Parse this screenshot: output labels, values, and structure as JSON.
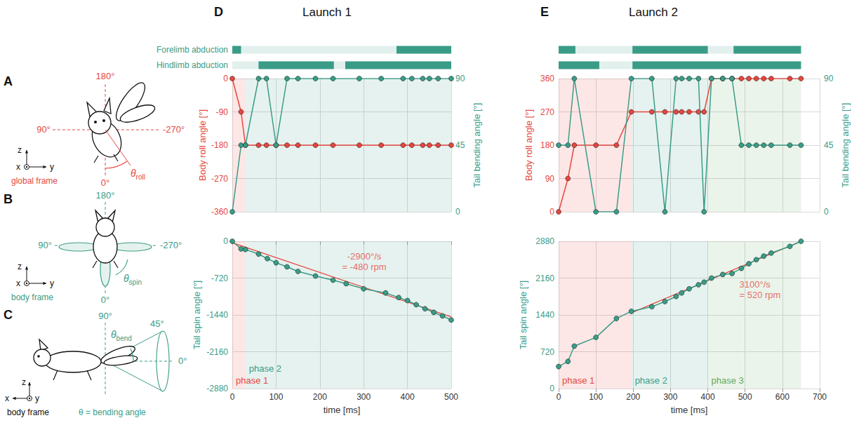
{
  "headers": [
    {
      "letter": "D",
      "title": "Launch 1"
    },
    {
      "letter": "E",
      "title": "Launch 2"
    }
  ],
  "diagrams": [
    {
      "letter": "A",
      "color": "#e4473f",
      "angles": [
        "180°",
        "90°",
        "-270°",
        "0°"
      ],
      "symbol": "θ",
      "subscript": "roll",
      "axes": [
        "x",
        "y",
        "z"
      ],
      "frame": "global frame"
    },
    {
      "letter": "B",
      "color": "#3a9c87",
      "angles": [
        "180°",
        "90°",
        "-270°",
        "0°"
      ],
      "symbol": "θ",
      "subscript": "spin",
      "axes": [
        "x",
        "y",
        "z"
      ],
      "frame": "body frame"
    },
    {
      "letter": "C",
      "color": "#3a9c87",
      "angles": [
        "90°",
        "45°",
        "0°"
      ],
      "symbol": "θ",
      "subscript": "bend",
      "axes": [
        "x",
        "y",
        "z"
      ],
      "frame": "body frame",
      "caption": "θ = bending angle"
    }
  ],
  "chart_data": [
    {
      "type": "timeline",
      "categories": [
        "Forelimb abduction",
        "Hindlimb abduction"
      ],
      "color": "#3a9c87",
      "xlim": [
        0,
        500
      ],
      "extent": [
        0,
        500
      ],
      "tick_labels": "y",
      "intervals": [
        [
          [
            0,
            20
          ],
          [
            375,
            500
          ]
        ],
        [
          [
            60,
            232
          ],
          [
            258,
            500
          ]
        ]
      ]
    },
    {
      "type": "line",
      "xlim": [
        0,
        500
      ],
      "xticks": [
        0,
        100,
        200,
        300,
        400,
        500
      ],
      "ylim": [
        -360,
        0
      ],
      "yticks": [
        -360,
        -270,
        -180,
        -90,
        0
      ],
      "y2lim": [
        0,
        90
      ],
      "y2ticks": [
        0,
        45,
        90
      ],
      "y_label": "Body roll angle [°]",
      "y2_label": "Tail bending angle [°]",
      "grid": true,
      "tick_labels": "y",
      "marker": "circle",
      "x": [
        0,
        20,
        30,
        60,
        78,
        100,
        125,
        150,
        190,
        230,
        290,
        340,
        390,
        410,
        435,
        450,
        470,
        500
      ],
      "series": [
        {
          "color": "#e4473f",
          "values": [
            0,
            -90,
            -180,
            -180,
            -180,
            -180,
            -180,
            -180,
            -180,
            -180,
            -180,
            -180,
            -180,
            -180,
            -180,
            -180,
            -180,
            -180
          ]
        },
        {
          "color": "#3a9c87",
          "axis": "y2",
          "values": [
            0,
            45,
            45,
            90,
            90,
            45,
            90,
            90,
            90,
            90,
            90,
            90,
            90,
            90,
            90,
            90,
            90,
            90
          ]
        }
      ],
      "phases": [
        {
          "start": 0,
          "end": 30,
          "color": "#e4473f"
        },
        {
          "start": 30,
          "end": 500,
          "color": "#3a9c87"
        }
      ]
    },
    {
      "type": "line",
      "xlim": [
        0,
        500
      ],
      "xticks": [
        0,
        100,
        200,
        300,
        400,
        500
      ],
      "ylim": [
        -2880,
        0
      ],
      "yticks": [
        -2880,
        -2160,
        -1440,
        -720,
        0
      ],
      "x_label": "time [ms]",
      "y_label": "Tail spin angle [°]",
      "grid": true,
      "marker": "circle",
      "x": [
        0,
        20,
        30,
        60,
        80,
        100,
        125,
        150,
        190,
        230,
        260,
        300,
        350,
        380,
        400,
        420,
        440,
        460,
        480,
        500
      ],
      "series": [
        {
          "color": "#3a9c87",
          "values": [
            0,
            -150,
            -160,
            -250,
            -340,
            -420,
            -500,
            -590,
            -680,
            -760,
            -830,
            -930,
            -1010,
            -1100,
            -1160,
            -1240,
            -1320,
            -1390,
            -1460,
            -1540
          ]
        }
      ],
      "fit": {
        "x": [
          0,
          500
        ],
        "values": [
          -30,
          -1480
        ],
        "color": "#e4473f",
        "annotation": [
          "-2900°/s",
          "= -480 rpm"
        ]
      },
      "phases": [
        {
          "start": 0,
          "end": 30,
          "color": "#e4473f",
          "label": "phase 1"
        },
        {
          "start": 30,
          "end": 500,
          "color": "#3a9c87",
          "label": "phase 2"
        }
      ]
    },
    {
      "type": "timeline",
      "categories": [
        "Forelimb abduction",
        "Hindlimb abduction"
      ],
      "color": "#3a9c87",
      "xlim": [
        0,
        700
      ],
      "extent": [
        0,
        650
      ],
      "tick_labels": false,
      "intervals": [
        [
          [
            0,
            45
          ],
          [
            198,
            400
          ],
          [
            469,
            650
          ]
        ],
        [
          [
            0,
            109
          ],
          [
            198,
            650
          ]
        ]
      ]
    },
    {
      "type": "line",
      "xlim": [
        0,
        700
      ],
      "xticks": [
        0,
        100,
        200,
        300,
        400,
        500,
        600,
        700
      ],
      "ylim": [
        0,
        360
      ],
      "yticks": [
        0,
        90,
        180,
        270,
        360
      ],
      "y2lim": [
        0,
        90
      ],
      "y2ticks": [
        0,
        45,
        90
      ],
      "y_label": "Body roll angle [°]",
      "y2_label": "Tail bending angle [°]",
      "grid": true,
      "tick_labels": "y",
      "marker": "circle",
      "x": [
        0,
        25,
        42,
        100,
        155,
        195,
        250,
        285,
        315,
        330,
        350,
        375,
        390,
        410,
        440,
        465,
        490,
        510,
        530,
        550,
        570,
        620,
        650
      ],
      "series": [
        {
          "color": "#e4473f",
          "values": [
            0,
            90,
            180,
            180,
            180,
            270,
            270,
            270,
            270,
            270,
            270,
            270,
            270,
            360,
            360,
            360,
            360,
            360,
            360,
            360,
            360,
            360,
            360
          ]
        },
        {
          "color": "#3a9c87",
          "axis": "y2",
          "values": [
            45,
            45,
            90,
            0,
            0,
            90,
            90,
            0,
            90,
            90,
            90,
            90,
            0,
            90,
            90,
            90,
            45,
            45,
            45,
            45,
            45,
            45,
            45
          ]
        }
      ],
      "phases": [
        {
          "start": 0,
          "end": 195,
          "color": "#e4473f"
        },
        {
          "start": 195,
          "end": 400,
          "color": "#3a9c87"
        },
        {
          "start": 400,
          "end": 650,
          "color": "#64a95c"
        }
      ]
    },
    {
      "type": "line",
      "xlim": [
        0,
        700
      ],
      "xticks": [
        0,
        100,
        200,
        300,
        400,
        500,
        600,
        700
      ],
      "ylim": [
        0,
        2880
      ],
      "yticks": [
        0,
        720,
        1440,
        2160,
        2880
      ],
      "x_label": "time [ms]",
      "y_label": "Tail spin angle [°]",
      "grid": true,
      "marker": "circle",
      "x": [
        0,
        25,
        42,
        100,
        155,
        195,
        250,
        285,
        315,
        330,
        350,
        375,
        390,
        410,
        440,
        465,
        490,
        510,
        530,
        550,
        570,
        620,
        650
      ],
      "series": [
        {
          "color": "#3a9c87",
          "values": [
            430,
            530,
            830,
            1000,
            1370,
            1510,
            1600,
            1700,
            1800,
            1870,
            1950,
            2030,
            2080,
            2160,
            2230,
            2250,
            2350,
            2440,
            2520,
            2590,
            2650,
            2780,
            2880
          ]
        }
      ],
      "fit": {
        "x": [
          195,
          650
        ],
        "values": [
          1480,
          2880
        ],
        "color": "#e4473f",
        "annotation": [
          "3100°/s",
          "= 520 rpm"
        ]
      },
      "phases": [
        {
          "start": 0,
          "end": 195,
          "color": "#e4473f",
          "label": "phase 1"
        },
        {
          "start": 195,
          "end": 400,
          "color": "#3a9c87",
          "label": "phase 2"
        },
        {
          "start": 400,
          "end": 650,
          "color": "#64a95c",
          "label": "phase 3"
        }
      ]
    }
  ]
}
